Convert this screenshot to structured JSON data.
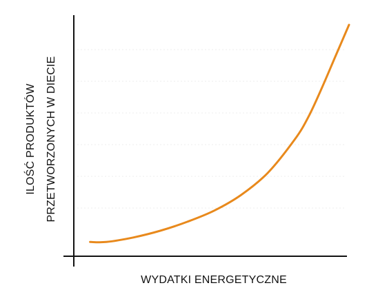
{
  "chart_data": {
    "type": "line",
    "title": "",
    "xlabel": "WYDATKI ENERGETYCZNE",
    "ylabel_lines": [
      "ILOŚĆ PRODUKTÓW",
      "PRZETWORZONYCH W DIECIE"
    ],
    "axis_tick_labels": false,
    "grid": "faint horizontal",
    "xlim": [
      0,
      1
    ],
    "ylim": [
      0,
      1
    ],
    "series": [
      {
        "color": "#E8891C",
        "x": [
          0.04,
          0.1,
          0.2,
          0.3,
          0.4,
          0.5,
          0.6,
          0.7,
          0.8,
          0.85,
          0.9,
          0.95,
          1.0
        ],
        "y": [
          0.03,
          0.03,
          0.05,
          0.08,
          0.12,
          0.17,
          0.24,
          0.34,
          0.49,
          0.59,
          0.72,
          0.86,
          1.0
        ]
      }
    ]
  },
  "colors": {
    "axis": "#111111",
    "grid": "#eeeeee",
    "curve": "#E8891C"
  }
}
